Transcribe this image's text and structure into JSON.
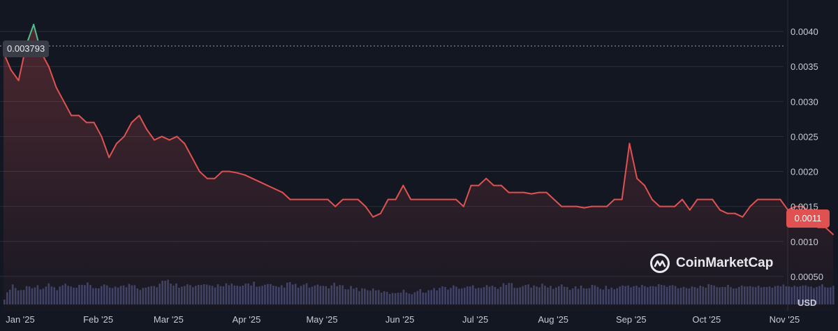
{
  "chart_data": {
    "type": "area",
    "currency": "USD",
    "x": [
      "2025-01-01",
      "2025-01-04",
      "2025-01-07",
      "2025-01-10",
      "2025-01-13",
      "2025-01-16",
      "2025-01-19",
      "2025-01-22",
      "2025-01-25",
      "2025-01-28",
      "2025-01-31",
      "2025-02-03",
      "2025-02-06",
      "2025-02-09",
      "2025-02-12",
      "2025-02-15",
      "2025-02-18",
      "2025-02-21",
      "2025-02-24",
      "2025-02-27",
      "2025-03-02",
      "2025-03-05",
      "2025-03-08",
      "2025-03-11",
      "2025-03-14",
      "2025-03-17",
      "2025-03-20",
      "2025-03-23",
      "2025-03-26",
      "2025-03-29",
      "2025-04-01",
      "2025-04-04",
      "2025-04-07",
      "2025-04-10",
      "2025-04-13",
      "2025-04-16",
      "2025-04-19",
      "2025-04-22",
      "2025-04-25",
      "2025-04-28",
      "2025-05-01",
      "2025-05-04",
      "2025-05-07",
      "2025-05-10",
      "2025-05-13",
      "2025-05-16",
      "2025-05-19",
      "2025-05-22",
      "2025-05-25",
      "2025-05-28",
      "2025-05-31",
      "2025-06-03",
      "2025-06-06",
      "2025-06-09",
      "2025-06-12",
      "2025-06-15",
      "2025-06-18",
      "2025-06-21",
      "2025-06-24",
      "2025-06-27",
      "2025-06-30",
      "2025-07-03",
      "2025-07-06",
      "2025-07-09",
      "2025-07-12",
      "2025-07-15",
      "2025-07-18",
      "2025-07-21",
      "2025-07-24",
      "2025-07-27",
      "2025-07-30",
      "2025-08-02",
      "2025-08-05",
      "2025-08-08",
      "2025-08-11",
      "2025-08-14",
      "2025-08-17",
      "2025-08-20",
      "2025-08-23",
      "2025-08-26",
      "2025-08-29",
      "2025-09-01",
      "2025-09-04",
      "2025-09-07",
      "2025-09-10",
      "2025-09-13",
      "2025-09-16",
      "2025-09-19",
      "2025-09-22",
      "2025-09-25",
      "2025-09-28",
      "2025-10-01",
      "2025-10-04",
      "2025-10-07",
      "2025-10-10",
      "2025-10-13",
      "2025-10-16",
      "2025-10-19",
      "2025-10-22",
      "2025-10-25",
      "2025-10-28",
      "2025-10-31",
      "2025-11-03",
      "2025-11-06",
      "2025-11-09",
      "2025-11-12",
      "2025-11-15",
      "2025-11-18",
      "2025-11-21",
      "2025-11-24",
      "2025-11-27"
    ],
    "series": [
      {
        "values": [
          0.0037,
          0.00345,
          0.0033,
          0.0038,
          0.0041,
          0.0037,
          0.0035,
          0.0032,
          0.003,
          0.0028,
          0.0028,
          0.0027,
          0.0027,
          0.0025,
          0.0022,
          0.0024,
          0.0025,
          0.0027,
          0.0028,
          0.0026,
          0.00245,
          0.0025,
          0.00245,
          0.0025,
          0.0024,
          0.0022,
          0.002,
          0.0019,
          0.0019,
          0.002,
          0.002,
          0.00198,
          0.00195,
          0.0019,
          0.00185,
          0.0018,
          0.00175,
          0.0017,
          0.0016,
          0.0016,
          0.0016,
          0.0016,
          0.0016,
          0.0016,
          0.0015,
          0.0016,
          0.0016,
          0.0016,
          0.0015,
          0.00135,
          0.0014,
          0.0016,
          0.0016,
          0.0018,
          0.0016,
          0.0016,
          0.0016,
          0.0016,
          0.0016,
          0.0016,
          0.0016,
          0.0015,
          0.0018,
          0.0018,
          0.0019,
          0.0018,
          0.0018,
          0.0017,
          0.0017,
          0.0017,
          0.00168,
          0.0017,
          0.0017,
          0.0016,
          0.0015,
          0.0015,
          0.0015,
          0.00148,
          0.0015,
          0.0015,
          0.0015,
          0.0016,
          0.0016,
          0.0024,
          0.0019,
          0.0018,
          0.0016,
          0.0015,
          0.0015,
          0.0015,
          0.0016,
          0.00145,
          0.0016,
          0.0016,
          0.0016,
          0.00145,
          0.0014,
          0.0014,
          0.00135,
          0.0015,
          0.0016,
          0.0016,
          0.0016,
          0.0016,
          0.00145,
          0.0015,
          0.0015,
          0.0014,
          0.0012,
          0.0012,
          0.0011
        ],
        "volumes": [
          0.15,
          0.55,
          0.35,
          0.48,
          0.5,
          0.45,
          0.52,
          0.4,
          0.55,
          0.42,
          0.47,
          0.53,
          0.44,
          0.49,
          0.45,
          0.51,
          0.47,
          0.55,
          0.43,
          0.52,
          0.48,
          0.6,
          0.62,
          0.5,
          0.56,
          0.45,
          0.53,
          0.47,
          0.5,
          0.55,
          0.52,
          0.45,
          0.54,
          0.58,
          0.46,
          0.52,
          0.44,
          0.5,
          0.56,
          0.47,
          0.52,
          0.45,
          0.5,
          0.48,
          0.53,
          0.45,
          0.47,
          0.4,
          0.42,
          0.38,
          0.35,
          0.3,
          0.33,
          0.36,
          0.3,
          0.38,
          0.35,
          0.4,
          0.46,
          0.44,
          0.48,
          0.42,
          0.5,
          0.47,
          0.52,
          0.45,
          0.5,
          0.55,
          0.49,
          0.53,
          0.46,
          0.51,
          0.48,
          0.45,
          0.5,
          0.43,
          0.47,
          0.44,
          0.49,
          0.45,
          0.46,
          0.42,
          0.48,
          0.52,
          0.46,
          0.5,
          0.47,
          0.52,
          0.48,
          0.5,
          0.45,
          0.49,
          0.47,
          0.51,
          0.46,
          0.5,
          0.47,
          0.49,
          0.45,
          0.48,
          0.5,
          0.46,
          0.49,
          0.47,
          0.52,
          0.45,
          0.55,
          0.48,
          0.5,
          0.53,
          0.46
        ]
      }
    ],
    "x_ticks": [
      "Jan '25",
      "Feb '25",
      "Mar '25",
      "Apr '25",
      "May '25",
      "Jun '25",
      "Jul '25",
      "Aug '25",
      "Sep '25",
      "Oct '25",
      "Nov '25"
    ],
    "y_ticks": [
      {
        "value": 0.004,
        "label": "0.0040"
      },
      {
        "value": 0.0035,
        "label": "0.0035"
      },
      {
        "value": 0.003,
        "label": "0.0030"
      },
      {
        "value": 0.0025,
        "label": "0.0025"
      },
      {
        "value": 0.002,
        "label": "0.0020"
      },
      {
        "value": 0.0015,
        "label": "0.0015"
      },
      {
        "value": 0.001,
        "label": "0.0010"
      },
      {
        "value": 0.0005,
        "label": "0.00050"
      }
    ],
    "ylim": [
      0.0,
      0.00445
    ],
    "reference_line": {
      "value": 0.003793,
      "label": "0.003793"
    },
    "current_price": {
      "value": 0.0011,
      "label": "0.0011"
    },
    "unit_label": "USD",
    "grid": true,
    "colors": {
      "background": "#131722",
      "down_line": "#e05252",
      "up_line": "#4fbf8a",
      "volume": "#3b4266",
      "grid": "#2a2e39",
      "reference": "#9aa0aa"
    }
  },
  "watermark": {
    "brand": "CoinMarketCap",
    "icon": "coinmarketcap-logo-icon"
  }
}
